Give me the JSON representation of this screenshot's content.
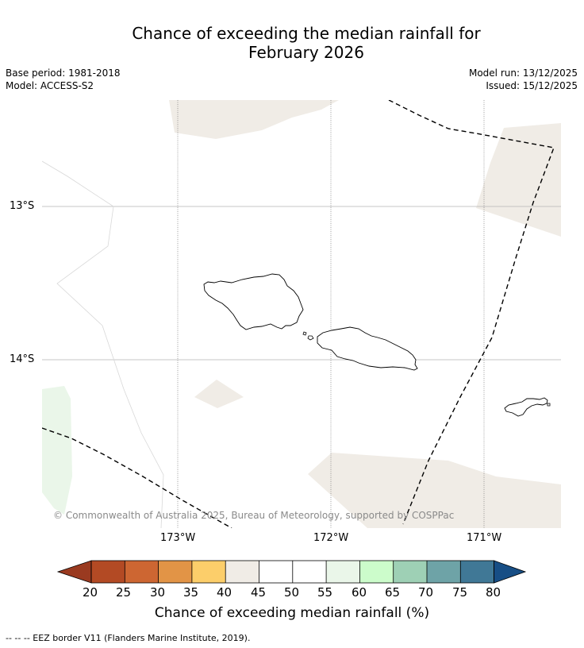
{
  "title_line1": "Chance of exceeding the median rainfall for",
  "title_line2": "February 2026",
  "meta": {
    "base_period": "Base period: 1981-2018",
    "model": "Model: ACCESS-S2",
    "model_run": "Model run: 13/12/2025",
    "issued": "Issued: 15/12/2025"
  },
  "axes": {
    "lat_labels": [
      "13°S",
      "14°S"
    ],
    "lon_labels": [
      "173°W",
      "172°W",
      "171°W"
    ]
  },
  "credit": "© Commonwealth of Australia 2025, Bureau of Meteorology, supported by COSPPac",
  "colorbar": {
    "title": "Chance of exceeding median rainfall (%)",
    "ticks": [
      "20",
      "25",
      "30",
      "35",
      "40",
      "45",
      "50",
      "55",
      "60",
      "65",
      "70",
      "75",
      "80"
    ],
    "colors": {
      "below20": "#9a3a20",
      "b20_25": "#b34a24",
      "b25_30": "#cd6632",
      "b30_35": "#e29446",
      "b35_40": "#fcce6a",
      "b40_45": "#f0ece6",
      "b45_50": "#ffffff",
      "b50_55": "#ffffff",
      "b55_60": "#eaf6e9",
      "b60_65": "#ccfccb",
      "b65_70": "#9ed0b5",
      "b70_75": "#6ea3a7",
      "b75_80": "#407896",
      "above80": "#174e85"
    }
  },
  "footer": "-- -- -- EEZ border V11 (Flanders Marine Institute, 2019)."
}
